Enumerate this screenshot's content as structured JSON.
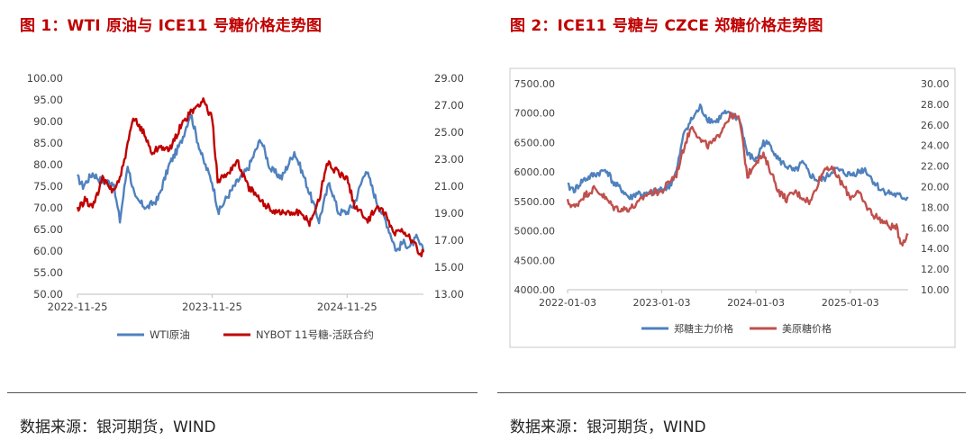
{
  "figure1": {
    "title": "图 1：WTI 原油与 ICE11 号糖价格走势图",
    "source": "数据来源：银河期货，WIND",
    "chart_data": {
      "type": "line",
      "x_ticks": [
        "2022-11-25",
        "2023-11-25",
        "2024-11-25"
      ],
      "y_left": {
        "ticks": [
          "50.00",
          "55.00",
          "60.00",
          "65.00",
          "70.00",
          "75.00",
          "80.00",
          "85.00",
          "90.00",
          "95.00",
          "100.00"
        ],
        "range": [
          50,
          100
        ]
      },
      "y_right": {
        "ticks": [
          "13.00",
          "15.00",
          "17.00",
          "19.00",
          "21.00",
          "23.00",
          "25.00",
          "27.00",
          "29.00"
        ],
        "range": [
          13,
          29
        ]
      },
      "x_range": [
        "2022-11-25",
        "2025-06-20"
      ],
      "series": [
        {
          "name": "WTI原油",
          "axis": "left",
          "color": "#4f81bd",
          "points": [
            [
              "2022-11-25",
              77
            ],
            [
              "2022-12-10",
              75
            ],
            [
              "2023-01-05",
              78
            ],
            [
              "2023-02-01",
              76
            ],
            [
              "2023-03-01",
              76
            ],
            [
              "2023-03-20",
              67
            ],
            [
              "2023-04-10",
              80
            ],
            [
              "2023-05-01",
              72
            ],
            [
              "2023-06-01",
              70
            ],
            [
              "2023-07-01",
              72
            ],
            [
              "2023-08-01",
              80
            ],
            [
              "2023-09-01",
              85
            ],
            [
              "2023-09-28",
              92
            ],
            [
              "2023-10-15",
              86
            ],
            [
              "2023-11-01",
              81
            ],
            [
              "2023-11-25",
              76
            ],
            [
              "2023-12-13",
              69
            ],
            [
              "2024-01-01",
              72
            ],
            [
              "2024-02-01",
              76
            ],
            [
              "2024-03-01",
              79
            ],
            [
              "2024-04-05",
              86
            ],
            [
              "2024-05-01",
              79
            ],
            [
              "2024-06-01",
              77
            ],
            [
              "2024-07-05",
              83
            ],
            [
              "2024-08-01",
              77
            ],
            [
              "2024-09-10",
              67
            ],
            [
              "2024-10-08",
              76
            ],
            [
              "2024-11-01",
              69
            ],
            [
              "2024-11-25",
              69
            ],
            [
              "2024-12-15",
              71
            ],
            [
              "2025-01-15",
              79
            ],
            [
              "2025-02-15",
              71
            ],
            [
              "2025-03-10",
              67
            ],
            [
              "2025-04-08",
              60
            ],
            [
              "2025-04-25",
              62
            ],
            [
              "2025-05-15",
              61
            ],
            [
              "2025-06-01",
              63
            ],
            [
              "2025-06-20",
              60
            ]
          ]
        },
        {
          "name": "NYBOT 11号糖-活跃合约",
          "axis": "right",
          "color": "#c00000",
          "points": [
            [
              "2022-11-25",
              19.2
            ],
            [
              "2022-12-15",
              20.0
            ],
            [
              "2023-01-05",
              19.5
            ],
            [
              "2023-02-01",
              21.5
            ],
            [
              "2023-03-01",
              20.7
            ],
            [
              "2023-03-20",
              21.5
            ],
            [
              "2023-04-10",
              24.0
            ],
            [
              "2023-04-25",
              26.0
            ],
            [
              "2023-05-20",
              25.2
            ],
            [
              "2023-06-15",
              23.5
            ],
            [
              "2023-07-10",
              24.0
            ],
            [
              "2023-08-01",
              23.6
            ],
            [
              "2023-09-01",
              25.5
            ],
            [
              "2023-10-01",
              26.5
            ],
            [
              "2023-11-01",
              27.4
            ],
            [
              "2023-11-25",
              26.0
            ],
            [
              "2023-12-10",
              21.5
            ],
            [
              "2024-01-01",
              21.8
            ],
            [
              "2024-02-01",
              22.9
            ],
            [
              "2024-03-01",
              21.0
            ],
            [
              "2024-04-01",
              20.0
            ],
            [
              "2024-05-01",
              19.3
            ],
            [
              "2024-06-15",
              19.0
            ],
            [
              "2024-07-15",
              19.1
            ],
            [
              "2024-08-15",
              18.3
            ],
            [
              "2024-09-10",
              20.0
            ],
            [
              "2024-10-01",
              22.8
            ],
            [
              "2024-11-01",
              22.0
            ],
            [
              "2024-11-25",
              21.5
            ],
            [
              "2024-12-15",
              19.6
            ],
            [
              "2025-01-20",
              18.5
            ],
            [
              "2025-02-15",
              19.5
            ],
            [
              "2025-03-10",
              18.8
            ],
            [
              "2025-04-01",
              17.5
            ],
            [
              "2025-04-25",
              17.8
            ],
            [
              "2025-05-15",
              17.2
            ],
            [
              "2025-06-05",
              16.3
            ],
            [
              "2025-06-12",
              15.9
            ],
            [
              "2025-06-20",
              16.1
            ]
          ]
        }
      ]
    }
  },
  "figure2": {
    "title": "图 2：ICE11 号糖与 CZCE 郑糖价格走势图",
    "source": "数据来源：银河期货，WIND",
    "chart_data": {
      "type": "line",
      "x_ticks": [
        "2022-01-03",
        "2023-01-03",
        "2024-01-03",
        "2025-01-03"
      ],
      "y_left": {
        "ticks": [
          "4000.00",
          "4500.00",
          "5000.00",
          "5500.00",
          "6000.00",
          "6500.00",
          "7000.00",
          "7500.00"
        ],
        "range": [
          4000,
          7500
        ]
      },
      "y_right": {
        "ticks": [
          "10.00",
          "12.00",
          "14.00",
          "16.00",
          "18.00",
          "20.00",
          "22.00",
          "24.00",
          "26.00",
          "28.00",
          "30.00"
        ],
        "range": [
          10,
          30
        ]
      },
      "x_range": [
        "2022-01-03",
        "2025-08-15"
      ],
      "series": [
        {
          "name": "郑糖主力价格",
          "axis": "left",
          "color": "#4f81bd",
          "points": [
            [
              "2022-01-03",
              5750
            ],
            [
              "2022-02-01",
              5700
            ],
            [
              "2022-03-01",
              5850
            ],
            [
              "2022-04-15",
              5950
            ],
            [
              "2022-05-15",
              6000
            ],
            [
              "2022-06-01",
              6050
            ],
            [
              "2022-07-01",
              5800
            ],
            [
              "2022-08-01",
              5700
            ],
            [
              "2022-09-01",
              5550
            ],
            [
              "2022-10-01",
              5650
            ],
            [
              "2022-11-01",
              5600
            ],
            [
              "2022-12-01",
              5650
            ],
            [
              "2023-01-03",
              5700
            ],
            [
              "2023-02-01",
              5750
            ],
            [
              "2023-03-01",
              6000
            ],
            [
              "2023-04-01",
              6700
            ],
            [
              "2023-05-01",
              6900
            ],
            [
              "2023-06-01",
              7100
            ],
            [
              "2023-07-01",
              6900
            ],
            [
              "2023-08-01",
              6850
            ],
            [
              "2023-09-01",
              7000
            ],
            [
              "2023-10-01",
              6950
            ],
            [
              "2023-11-01",
              6900
            ],
            [
              "2023-12-01",
              6300
            ],
            [
              "2024-01-03",
              6200
            ],
            [
              "2024-02-01",
              6500
            ],
            [
              "2024-03-01",
              6450
            ],
            [
              "2024-04-01",
              6200
            ],
            [
              "2024-05-01",
              6100
            ],
            [
              "2024-06-01",
              6000
            ],
            [
              "2024-07-01",
              6150
            ],
            [
              "2024-08-01",
              5950
            ],
            [
              "2024-09-01",
              5850
            ],
            [
              "2024-10-01",
              5900
            ],
            [
              "2024-11-01",
              6050
            ],
            [
              "2025-01-03",
              5950
            ],
            [
              "2025-02-01",
              6000
            ],
            [
              "2025-03-01",
              6050
            ],
            [
              "2025-04-01",
              5850
            ],
            [
              "2025-05-01",
              5700
            ],
            [
              "2025-06-01",
              5650
            ],
            [
              "2025-07-01",
              5600
            ],
            [
              "2025-08-15",
              5550
            ]
          ]
        },
        {
          "name": "美原糖价格",
          "axis": "right",
          "color": "#c0504d",
          "points": [
            [
              "2022-01-03",
              18.5
            ],
            [
              "2022-02-01",
              18.0
            ],
            [
              "2022-03-01",
              19.0
            ],
            [
              "2022-04-15",
              19.8
            ],
            [
              "2022-05-15",
              19.3
            ],
            [
              "2022-06-01",
              18.8
            ],
            [
              "2022-07-01",
              18.0
            ],
            [
              "2022-08-01",
              17.8
            ],
            [
              "2022-09-01",
              17.9
            ],
            [
              "2022-10-01",
              18.3
            ],
            [
              "2022-11-01",
              19.2
            ],
            [
              "2022-12-01",
              19.5
            ],
            [
              "2023-01-03",
              19.5
            ],
            [
              "2023-02-01",
              20.5
            ],
            [
              "2023-03-01",
              21.2
            ],
            [
              "2023-04-01",
              24.0
            ],
            [
              "2023-05-01",
              26.0
            ],
            [
              "2023-06-01",
              24.5
            ],
            [
              "2023-07-01",
              24.0
            ],
            [
              "2023-08-01",
              24.5
            ],
            [
              "2023-09-01",
              26.0
            ],
            [
              "2023-10-01",
              27.0
            ],
            [
              "2023-11-01",
              26.5
            ],
            [
              "2023-12-01",
              21.0
            ],
            [
              "2024-01-03",
              22.5
            ],
            [
              "2024-02-01",
              23.0
            ],
            [
              "2024-03-01",
              21.5
            ],
            [
              "2024-04-01",
              19.5
            ],
            [
              "2024-05-01",
              18.8
            ],
            [
              "2024-06-01",
              19.5
            ],
            [
              "2024-07-01",
              19.0
            ],
            [
              "2024-08-01",
              18.5
            ],
            [
              "2024-09-01",
              20.5
            ],
            [
              "2024-10-01",
              22.0
            ],
            [
              "2024-11-01",
              21.5
            ],
            [
              "2025-01-03",
              19.0
            ],
            [
              "2025-02-01",
              19.5
            ],
            [
              "2025-03-01",
              18.3
            ],
            [
              "2025-04-01",
              17.3
            ],
            [
              "2025-05-01",
              16.8
            ],
            [
              "2025-06-01",
              16.2
            ],
            [
              "2025-07-01",
              16.0
            ],
            [
              "2025-07-20",
              14.5
            ],
            [
              "2025-08-15",
              15.3
            ]
          ]
        }
      ]
    }
  }
}
